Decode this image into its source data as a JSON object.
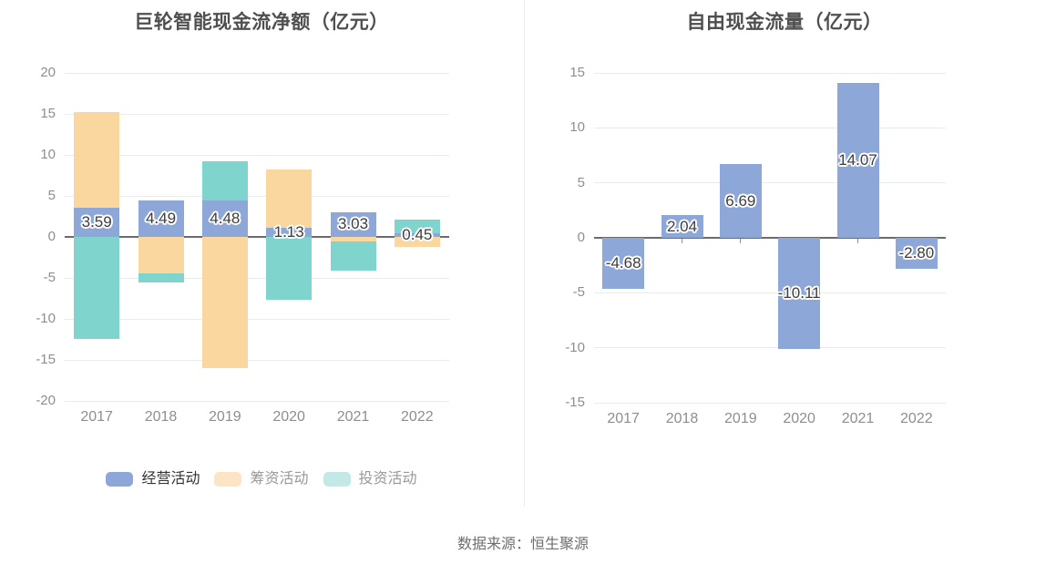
{
  "footer": {
    "source": "数据来源：恒生聚源"
  },
  "chart_data": [
    {
      "key": "cashflow-net",
      "type": "bar",
      "stacked": true,
      "title": "巨轮智能现金流净额（亿元）",
      "xlabel": "",
      "ylabel": "",
      "categories": [
        "2017",
        "2018",
        "2019",
        "2020",
        "2021",
        "2022"
      ],
      "ylim": [
        -20,
        20
      ],
      "ytick_step": 5,
      "grid": true,
      "legend_position": "bottom",
      "series": [
        {
          "key": "operating",
          "name": "经营活动",
          "color": "#8da8d8",
          "values": [
            3.59,
            4.49,
            4.48,
            1.13,
            3.03,
            0.45
          ],
          "labels": [
            "3.59",
            "4.49",
            "4.48",
            "1.13",
            "3.03",
            "0.45"
          ]
        },
        {
          "key": "financing",
          "name": "筹资活动",
          "color": "#fad79e",
          "values": [
            11.63,
            -4.49,
            -16.0,
            7.05,
            -0.6,
            -1.19
          ]
        },
        {
          "key": "investing",
          "name": "投资活动",
          "color": "#7fd4cd",
          "values": [
            -12.45,
            -1.11,
            4.7,
            -7.67,
            -3.5,
            1.62
          ]
        }
      ],
      "legend": [
        {
          "key": "operating",
          "label": "经营活动",
          "swatch": "#8ca7d8",
          "text_color": "#333333"
        },
        {
          "key": "financing",
          "label": "筹资活动",
          "swatch": "#fbe5c4",
          "text_color": "#999999"
        },
        {
          "key": "investing",
          "label": "投资活动",
          "swatch": "#c2e9e6",
          "text_color": "#999999"
        }
      ]
    },
    {
      "key": "free-cash-flow",
      "type": "bar",
      "stacked": false,
      "title": "自由现金流量（亿元）",
      "xlabel": "",
      "ylabel": "",
      "categories": [
        "2017",
        "2018",
        "2019",
        "2020",
        "2021",
        "2022"
      ],
      "ylim": [
        -15,
        15
      ],
      "ytick_step": 5,
      "grid": true,
      "legend_position": "none",
      "series": [
        {
          "key": "fcf",
          "name": "自由现金流量",
          "color": "#8da8d8",
          "values": [
            -4.68,
            2.04,
            6.69,
            -10.11,
            14.07,
            -2.8
          ],
          "labels": [
            "-4.68",
            "2.04",
            "6.69",
            "-10.11",
            "14.07",
            "-2.80"
          ]
        }
      ],
      "legend": []
    }
  ]
}
